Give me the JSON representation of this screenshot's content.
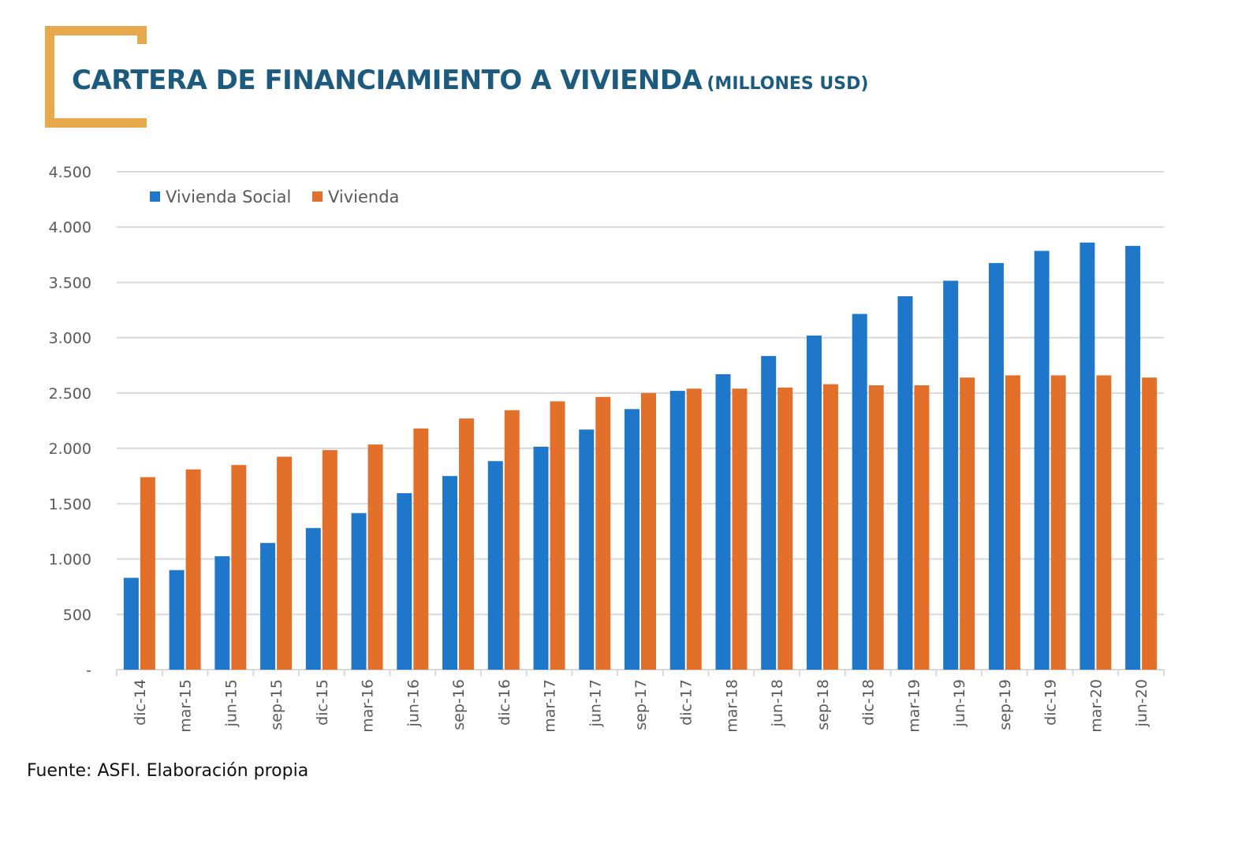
{
  "title": {
    "main": "CARTERA DE FINANCIAMIENTO A VIVIENDA",
    "unit": "(MILLONES USD)"
  },
  "colors": {
    "title": "#1c5a7e",
    "bracket": "#e8a94c",
    "vivienda_social": "#1f77c9",
    "vivienda": "#e2702a",
    "grid": "#d9d9d9",
    "axis_text": "#595959"
  },
  "source": "Fuente: ASFI. Elaboración propia",
  "chart_data": {
    "type": "bar",
    "ylim": [
      0,
      4500
    ],
    "yticks": [
      {
        "value": 0,
        "label": "-"
      },
      {
        "value": 500,
        "label": "500"
      },
      {
        "value": 1000,
        "label": "1.000"
      },
      {
        "value": 1500,
        "label": "1.500"
      },
      {
        "value": 2000,
        "label": "2.000"
      },
      {
        "value": 2500,
        "label": "2.500"
      },
      {
        "value": 3000,
        "label": "3.000"
      },
      {
        "value": 3500,
        "label": "3.500"
      },
      {
        "value": 4000,
        "label": "4.000"
      },
      {
        "value": 4500,
        "label": "4.500"
      }
    ],
    "grid": true,
    "legend_position": "top-left",
    "categories": [
      "dic-14",
      "mar-15",
      "jun-15",
      "sep-15",
      "dic-15",
      "mar-16",
      "jun-16",
      "sep-16",
      "dic-16",
      "mar-17",
      "jun-17",
      "sep-17",
      "dic-17",
      "mar-18",
      "jun-18",
      "sep-18",
      "dic-18",
      "mar-19",
      "jun-19",
      "sep-19",
      "dic-19",
      "mar-20",
      "jun-20"
    ],
    "series": [
      {
        "name": "Vivienda Social",
        "color": "#1f77c9",
        "values": [
          830,
          900,
          1025,
          1145,
          1280,
          1415,
          1595,
          1750,
          1885,
          2015,
          2170,
          2355,
          2520,
          2670,
          2835,
          3020,
          3215,
          3375,
          3515,
          3675,
          3785,
          3860,
          3830
        ]
      },
      {
        "name": "Vivienda",
        "color": "#e2702a",
        "values": [
          1740,
          1810,
          1850,
          1925,
          1985,
          2035,
          2180,
          2270,
          2345,
          2425,
          2465,
          2500,
          2540,
          2540,
          2550,
          2580,
          2570,
          2570,
          2640,
          2660,
          2660,
          2660,
          2640
        ]
      }
    ]
  }
}
